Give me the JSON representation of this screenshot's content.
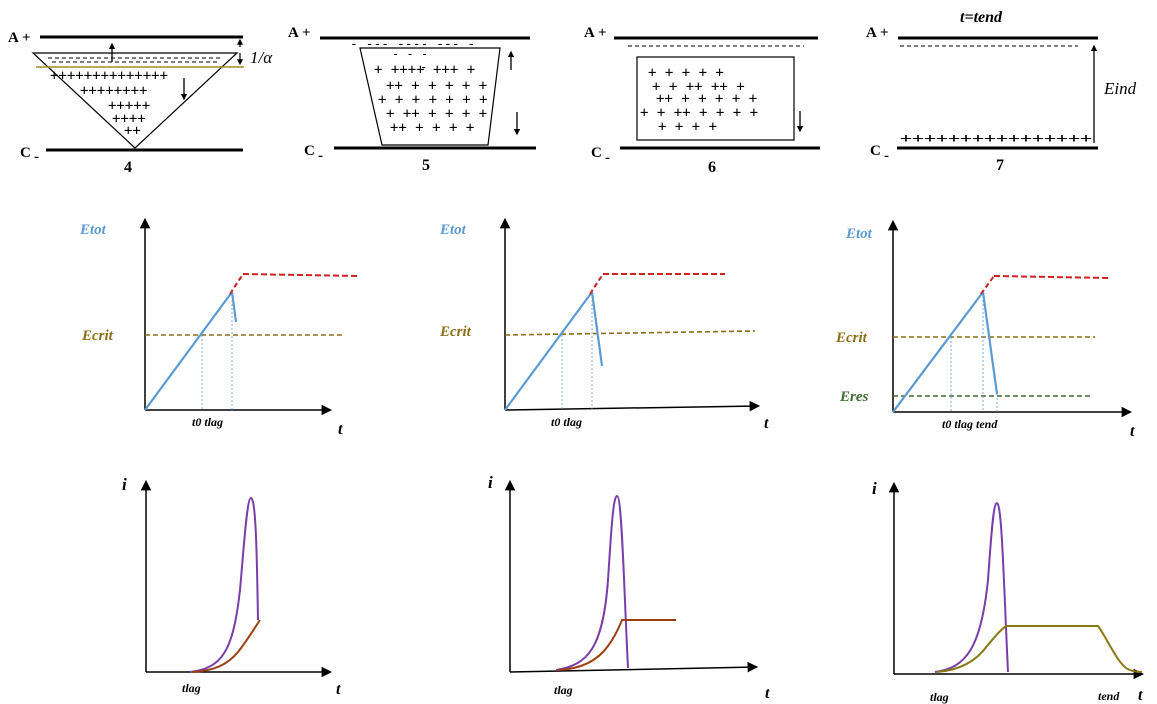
{
  "colors": {
    "etot": "#5b9bd5",
    "ecrit": "#8b6d14",
    "eres": "#3e6b2f",
    "red": "#cc2222",
    "purple": "#7a3ea8",
    "brown": "#9a3f10",
    "olive": "#8a7a12",
    "axis": "#000000"
  },
  "panels": [
    {
      "number": "4",
      "anode": "A",
      "cathode": "C",
      "anode_sign": "+",
      "cathode_sign": "-",
      "extra_label": "1/α"
    },
    {
      "number": "5",
      "anode": "A",
      "cathode": "C",
      "anode_sign": "+",
      "cathode_sign": "-"
    },
    {
      "number": "6",
      "anode": "A",
      "cathode": "C",
      "anode_sign": "+",
      "cathode_sign": "-"
    },
    {
      "number": "7",
      "anode": "A",
      "cathode": "C",
      "anode_sign": "+",
      "cathode_sign": "-",
      "title": "t=tend",
      "side_label": "Eind"
    }
  ],
  "panel7_plus_row": "++++++++++++++++",
  "field_plots": [
    {
      "y_label": "Etot",
      "x_label": "t",
      "ecrit_label": "Ecrit",
      "ticks": "t0 tlag"
    },
    {
      "y_label": "Etot",
      "x_label": "t",
      "ecrit_label": "Ecrit",
      "ticks": "t0 tlag"
    },
    {
      "y_label": "Etot",
      "x_label": "t",
      "ecrit_label": "Ecrit",
      "eres_label": "Eres",
      "ticks": "t0 tlag tend"
    }
  ],
  "current_plots": [
    {
      "y_label": "i",
      "x_label": "t",
      "tick": "tlag"
    },
    {
      "y_label": "i",
      "x_label": "t",
      "tick": "tlag"
    },
    {
      "y_label": "i",
      "x_label": "t",
      "tick": "tlag",
      "tick2": "tend"
    }
  ]
}
